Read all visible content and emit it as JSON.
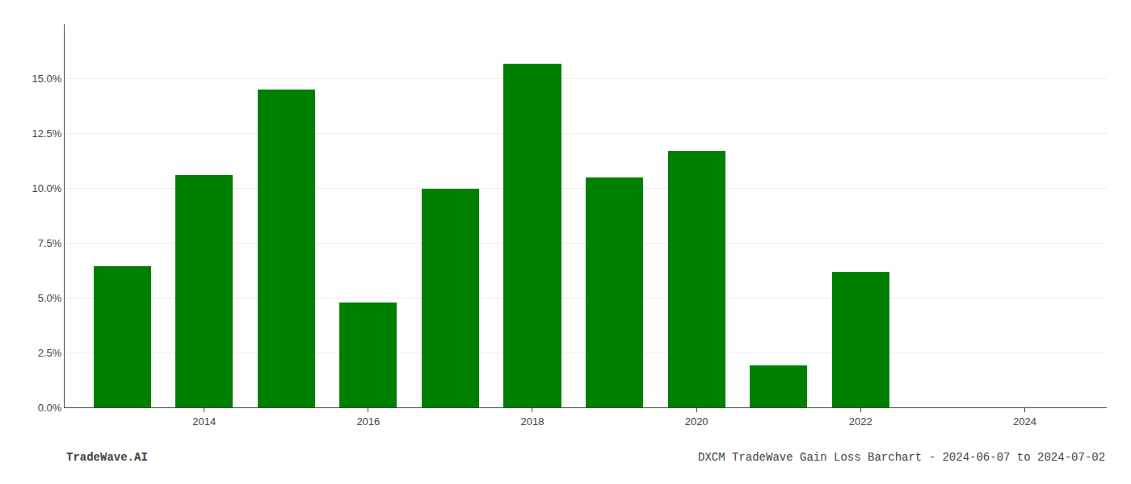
{
  "chart_data": {
    "type": "bar",
    "x": [
      2013,
      2014,
      2015,
      2016,
      2017,
      2018,
      2019,
      2020,
      2021,
      2022
    ],
    "values": [
      0.0645,
      0.106,
      0.145,
      0.048,
      0.1,
      0.157,
      0.105,
      0.117,
      0.019,
      0.062
    ],
    "color": "#008000",
    "xlim": [
      2012.3,
      2025.0
    ],
    "xticks": [
      2014,
      2016,
      2018,
      2020,
      2022,
      2024
    ],
    "ylim": [
      0,
      0.175
    ],
    "yticks": [
      {
        "value": 0.0,
        "label": "0.0%"
      },
      {
        "value": 0.025,
        "label": "2.5%"
      },
      {
        "value": 0.05,
        "label": "5.0%"
      },
      {
        "value": 0.075,
        "label": "7.5%"
      },
      {
        "value": 0.1,
        "label": "10.0%"
      },
      {
        "value": 0.125,
        "label": "12.5%"
      },
      {
        "value": 0.15,
        "label": "15.0%"
      }
    ],
    "grid": true,
    "annotations": [
      "TradeWave.AI",
      "DXCM TradeWave Gain Loss Barchart - 2024-06-07 to 2024-07-02"
    ]
  }
}
